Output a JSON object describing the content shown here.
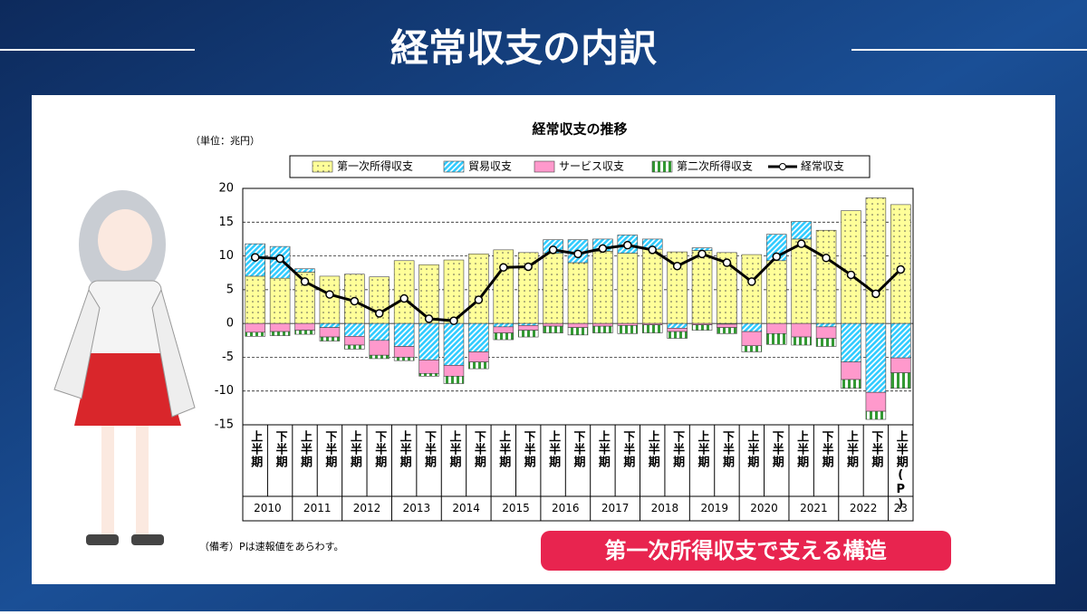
{
  "header": {
    "title": "経常収支の内訳"
  },
  "callout": "第一次所得収支で支える構造",
  "chart_data": {
    "type": "bar",
    "stacked": true,
    "title": "経常収支の推移",
    "unit_label": "（単位：兆円）",
    "note": "（備考）Pは速報値をあらわす。",
    "categories": [
      "上半期",
      "下半期",
      "上半期",
      "下半期",
      "上半期",
      "下半期",
      "上半期",
      "下半期",
      "上半期",
      "下半期",
      "上半期",
      "下半期",
      "上半期",
      "下半期",
      "上半期",
      "下半期",
      "上半期",
      "下半期",
      "上半期",
      "下半期",
      "上半期",
      "下半期",
      "上半期",
      "下半期",
      "上半期",
      "下半期",
      "上半期(P)"
    ],
    "year_labels": [
      "2010",
      "2011",
      "2012",
      "2013",
      "2014",
      "2015",
      "2016",
      "2017",
      "2018",
      "2019",
      "2020",
      "2021",
      "2022",
      "23"
    ],
    "ylim": [
      -15,
      20
    ],
    "yticks": [
      -15,
      -10,
      -5,
      0,
      5,
      10,
      15,
      20
    ],
    "grid": true,
    "series": [
      {
        "name": "第一次所得収支",
        "color": "#ffff99",
        "pattern": "dots",
        "values": [
          7.0,
          6.7,
          7.6,
          7.0,
          7.3,
          6.9,
          9.3,
          8.7,
          9.4,
          10.3,
          10.9,
          10.5,
          10.4,
          9.0,
          10.7,
          10.4,
          11.0,
          10.6,
          10.8,
          10.5,
          10.2,
          9.3,
          12.5,
          13.8,
          16.7,
          18.6,
          17.6
        ]
      },
      {
        "name": "貿易収支",
        "color": "#33ccff",
        "pattern": "diagonal",
        "values": [
          4.8,
          4.7,
          0.5,
          -0.6,
          -1.9,
          -2.5,
          -3.4,
          -5.4,
          -6.2,
          -4.2,
          -0.5,
          -0.3,
          2.0,
          3.4,
          1.8,
          2.7,
          1.5,
          -0.7,
          0.4,
          -0.1,
          -1.2,
          3.9,
          2.6,
          -0.5,
          -5.7,
          -10.2,
          -5.1
        ]
      },
      {
        "name": "サービス収支",
        "color": "#ff99cc",
        "pattern": "solid",
        "values": [
          -1.3,
          -1.2,
          -1.0,
          -1.4,
          -1.3,
          -2.2,
          -1.6,
          -2.0,
          -1.6,
          -1.5,
          -0.9,
          -0.7,
          -0.4,
          -0.6,
          -0.4,
          -0.3,
          -0.2,
          -0.5,
          -0.2,
          -0.5,
          -2.1,
          -1.5,
          -2.0,
          -1.7,
          -2.6,
          -2.8,
          -2.2
        ]
      },
      {
        "name": "第二次所得収支",
        "color": "#339933",
        "pattern": "vertical",
        "values": [
          -0.6,
          -0.6,
          -0.6,
          -0.6,
          -0.6,
          -0.5,
          -0.5,
          -0.4,
          -1.1,
          -1.0,
          -1.0,
          -1.0,
          -1.0,
          -1.1,
          -1.0,
          -1.2,
          -1.2,
          -1.0,
          -0.8,
          -0.9,
          -0.9,
          -1.6,
          -1.2,
          -1.2,
          -1.3,
          -1.2,
          -2.3
        ]
      },
      {
        "name": "経常収支",
        "color": "#000000",
        "type": "line",
        "values": [
          9.8,
          9.6,
          6.2,
          4.3,
          3.3,
          1.5,
          3.7,
          0.7,
          0.4,
          3.5,
          8.3,
          8.4,
          10.9,
          10.3,
          11.1,
          11.6,
          10.9,
          8.5,
          10.3,
          9.0,
          6.2,
          9.9,
          11.8,
          9.7,
          7.2,
          4.4,
          8.0
        ]
      }
    ]
  }
}
